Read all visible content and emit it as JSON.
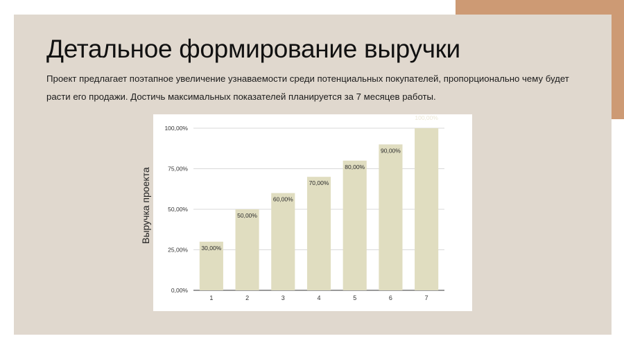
{
  "slide": {
    "title": "Детальное формирование выручки",
    "subtitle": "Проект предлагает поэтапное увеличение узнаваемости среди потенциальных покупателей, пропорционально чему будет расти его продажи. Достичь максимальных показателей планируется за 7 месяцев работы.",
    "colors": {
      "panel": "#e0d8ce",
      "accent": "#cd9a74",
      "bar": "#e0ddc0"
    }
  },
  "chart_data": {
    "type": "bar",
    "title": "",
    "xlabel": "",
    "ylabel": "Выручка проекта",
    "categories": [
      "1",
      "2",
      "3",
      "4",
      "5",
      "6",
      "7"
    ],
    "values": [
      30,
      50,
      60,
      70,
      80,
      90,
      100
    ],
    "data_labels": [
      "30,00%",
      "50,00%",
      "60,00%",
      "70,00%",
      "80,00%",
      "90,00%",
      "100,00%"
    ],
    "ylim": [
      0,
      100
    ],
    "yticks": [
      0,
      25,
      50,
      75,
      100
    ],
    "ytick_labels": [
      "0,00%",
      "25,00%",
      "50,00%",
      "75,00%",
      "100,00%"
    ],
    "grid": true,
    "legend": "none"
  }
}
